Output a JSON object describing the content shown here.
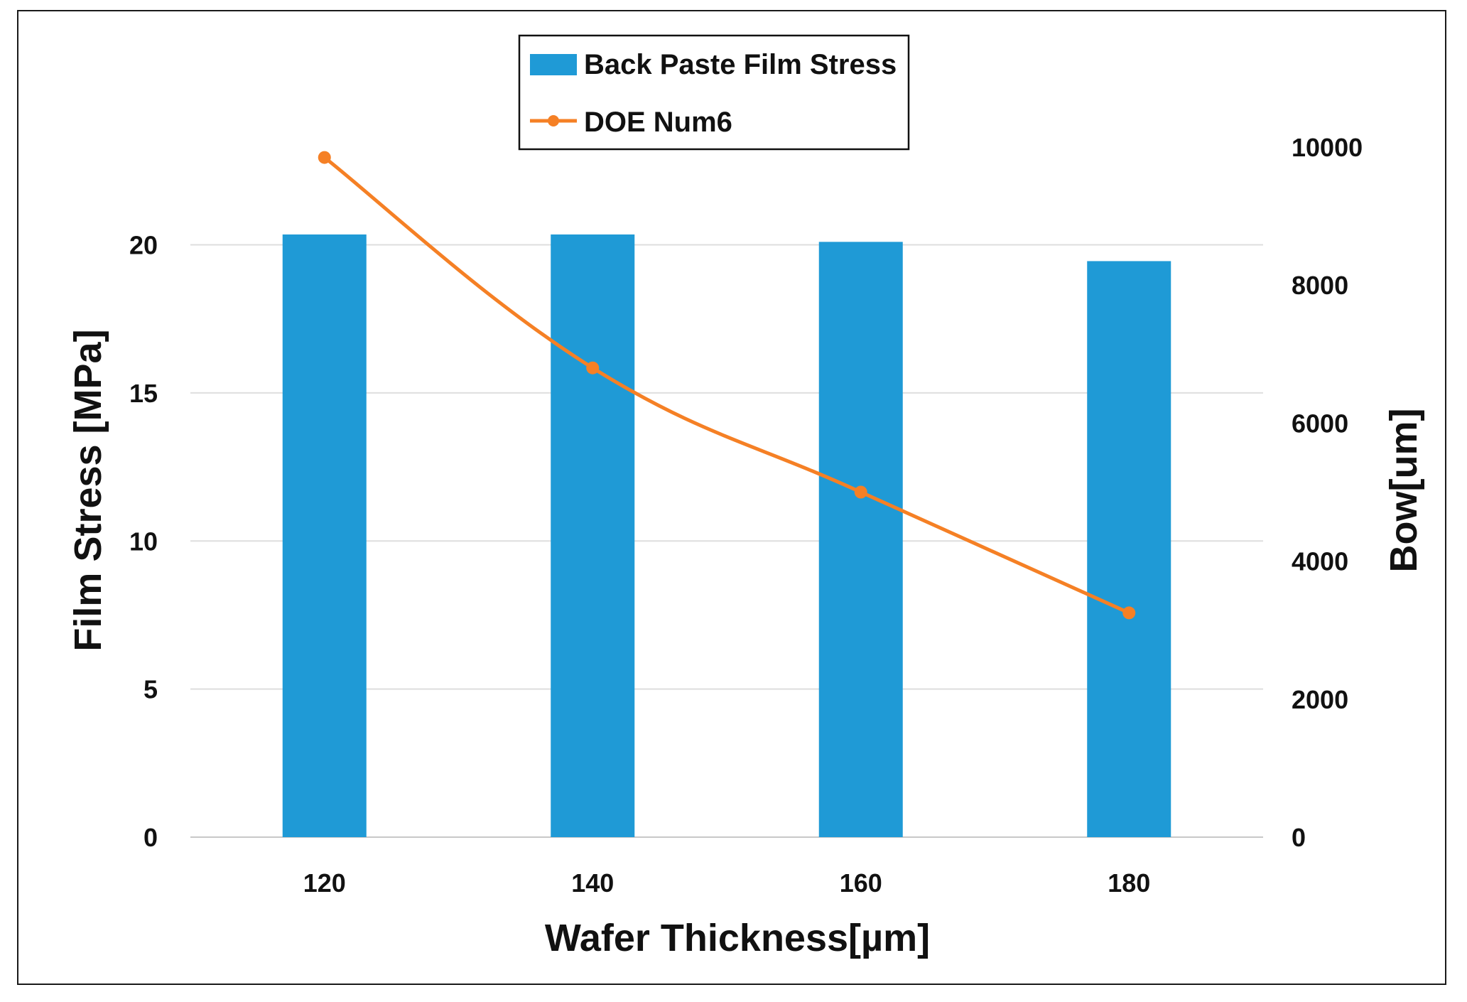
{
  "chart_data": {
    "type": "bar+line",
    "title": "",
    "categories": [
      "120",
      "140",
      "160",
      "180"
    ],
    "x_values": [
      120,
      140,
      160,
      180
    ],
    "xlabel": "Wafer Thickness[µm]",
    "ylabel_left": "Film Stress [MPa]",
    "ylabel_right": "Bow[um]",
    "ylim_left": [
      0,
      23.3
    ],
    "yticks_left": [
      0,
      5,
      10,
      15,
      20
    ],
    "ylim_right": [
      0,
      10000
    ],
    "yticks_right": [
      0,
      2000,
      4000,
      6000,
      8000,
      10000
    ],
    "grid": true,
    "legend_position": "top-center",
    "series": [
      {
        "name": "Back Paste Film Stress",
        "type": "bar",
        "axis": "left",
        "color": "#1f9ad6",
        "values": [
          20.35,
          20.35,
          20.1,
          19.45
        ]
      },
      {
        "name": "DOE Num6",
        "type": "line",
        "axis": "right",
        "color": "#f58025",
        "values": [
          9850,
          6800,
          5000,
          3250
        ]
      }
    ]
  }
}
